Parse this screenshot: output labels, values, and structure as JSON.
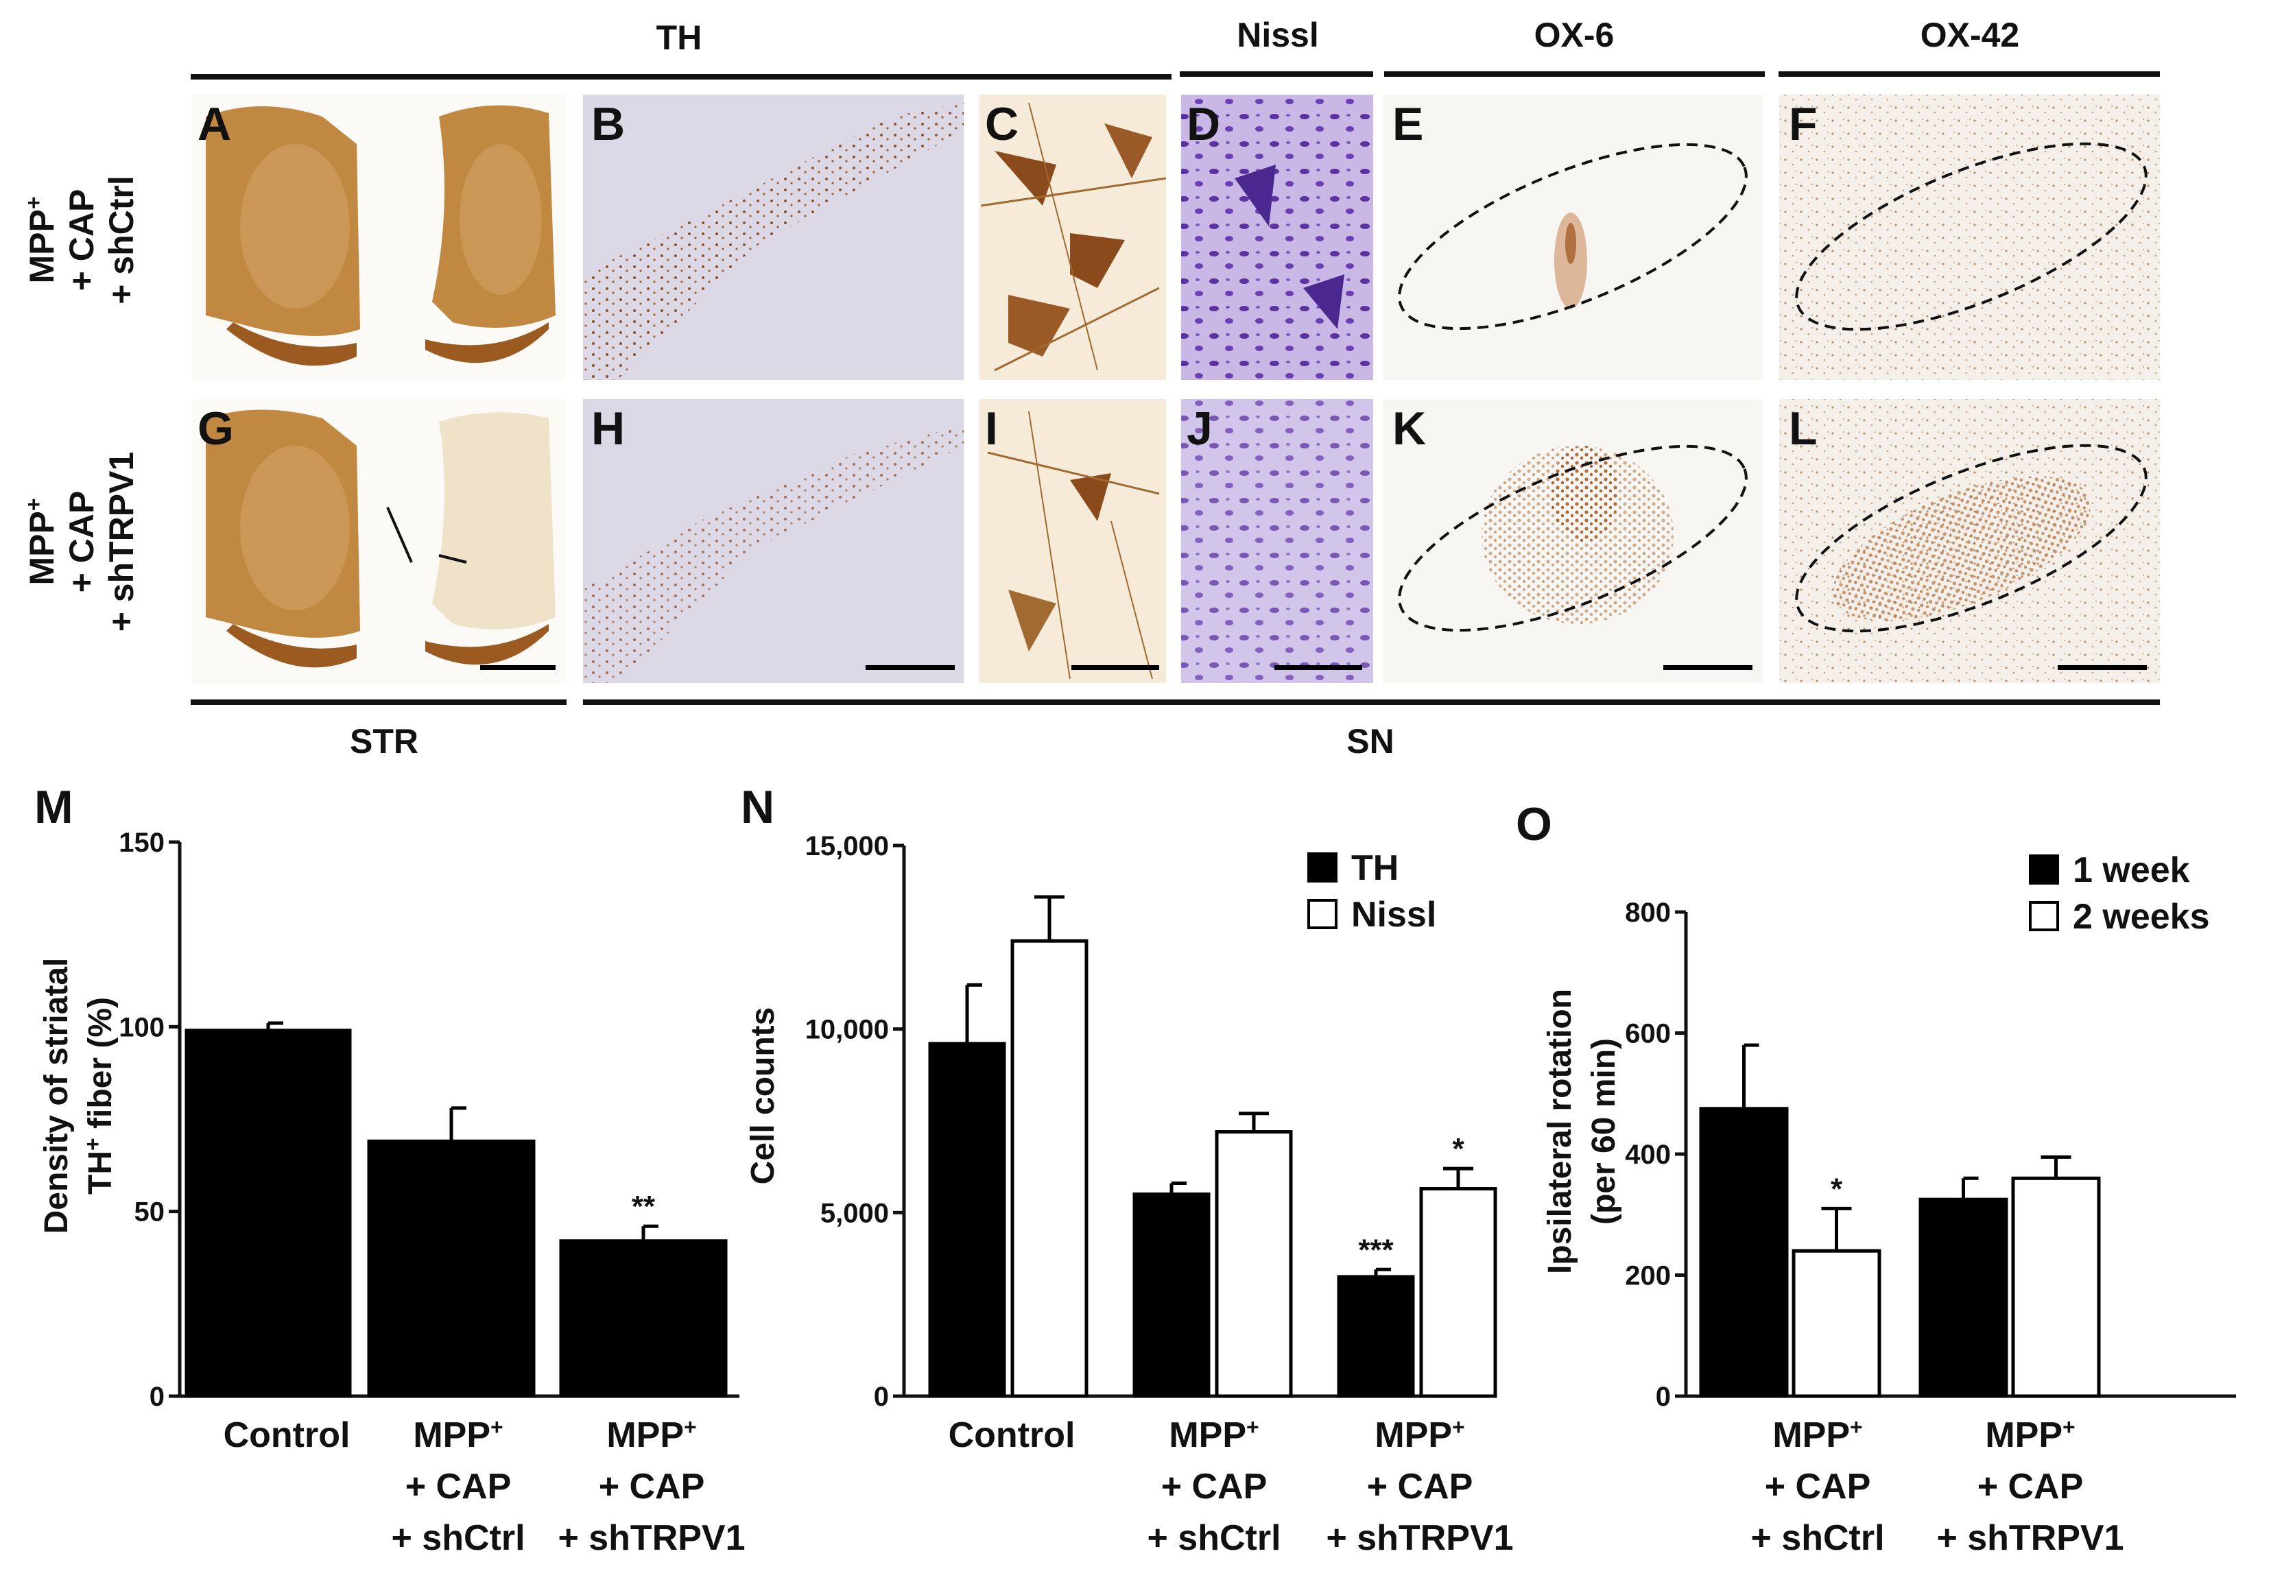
{
  "figure": {
    "column_headers": [
      "TH",
      "Nissl",
      "OX-6",
      "OX-42"
    ],
    "region_labels": [
      "STR",
      "SN"
    ],
    "rows": [
      {
        "line1": "MPP",
        "line1_sup": "+",
        "line2": "+ CAP",
        "line3": "+ shCtrl"
      },
      {
        "line1": "MPP",
        "line1_sup": "+",
        "line2": "+ CAP",
        "line3": "+ shTRPV1"
      }
    ],
    "panels": [
      {
        "letter": "A",
        "stain": "th_striatum"
      },
      {
        "letter": "B",
        "stain": "th_sn_high"
      },
      {
        "letter": "C",
        "stain": "th_cells_high"
      },
      {
        "letter": "D",
        "stain": "nissl_high"
      },
      {
        "letter": "E",
        "stain": "ox6_low"
      },
      {
        "letter": "F",
        "stain": "ox42_low"
      },
      {
        "letter": "G",
        "stain": "th_striatum_lesion"
      },
      {
        "letter": "H",
        "stain": "th_sn_low"
      },
      {
        "letter": "I",
        "stain": "th_cells_low"
      },
      {
        "letter": "J",
        "stain": "nissl_low"
      },
      {
        "letter": "K",
        "stain": "ox6_high"
      },
      {
        "letter": "L",
        "stain": "ox42_high"
      }
    ],
    "colors": {
      "th_brown": "#a8662a",
      "th_dark": "#7a3f12",
      "nissl_purple": "#6a3fa6",
      "nissl_bg": "#c9b8e6",
      "dab_dot": "#b07040",
      "tissue_bg": "#f7f4ee"
    }
  },
  "chart_data": [
    {
      "letter": "M",
      "type": "bar",
      "categories": [
        {
          "line1": "Control",
          "line1_sup": "",
          "line2": "",
          "line3": ""
        },
        {
          "line1": "MPP",
          "line1_sup": "+",
          "line2": "+ CAP",
          "line3": "+ shCtrl"
        },
        {
          "line1": "MPP",
          "line1_sup": "+",
          "line2": "+ CAP",
          "line3": "+ shTRPV1"
        }
      ],
      "series": [
        {
          "fill": "#000000",
          "values": [
            99,
            69,
            42
          ],
          "errors": [
            2,
            9,
            4
          ],
          "sig": [
            "",
            "",
            "**"
          ]
        }
      ],
      "ylabel_line1": "Density of striatal",
      "ylabel_line2": "TH",
      "ylabel_line2_sup": "+",
      "ylabel_line2_rest": " fiber (%)",
      "ylim": [
        0,
        150
      ],
      "yticks": [
        "0",
        "50",
        "100",
        "150"
      ],
      "legend": []
    },
    {
      "letter": "N",
      "type": "bar",
      "categories": [
        {
          "line1": "Control",
          "line1_sup": "",
          "line2": "",
          "line3": ""
        },
        {
          "line1": "MPP",
          "line1_sup": "+",
          "line2": "+ CAP",
          "line3": "+ shCtrl"
        },
        {
          "line1": "MPP",
          "line1_sup": "+",
          "line2": "+ CAP",
          "line3": "+ shTRPV1"
        }
      ],
      "series": [
        {
          "name": "TH",
          "fill": "#000000",
          "values": [
            9600,
            5500,
            3250
          ],
          "errors": [
            1600,
            300,
            200
          ],
          "sig": [
            "",
            "",
            "***"
          ]
        },
        {
          "name": "Nissl",
          "fill": "#ffffff",
          "values": [
            12400,
            7200,
            5650
          ],
          "errors": [
            1200,
            500,
            550
          ],
          "sig": [
            "",
            "",
            "*"
          ]
        }
      ],
      "ylabel_line1": "Cell counts",
      "ylim": [
        0,
        15000
      ],
      "yticks": [
        "0",
        "5,000",
        "10,000",
        "15,000"
      ],
      "legend": [
        "TH",
        "Nissl"
      ],
      "legend_placement": "top-right"
    },
    {
      "letter": "O",
      "type": "bar",
      "categories": [
        {
          "line1": "MPP",
          "line1_sup": "+",
          "line2": "+ CAP",
          "line3": "+ shCtrl"
        },
        {
          "line1": "MPP",
          "line1_sup": "+",
          "line2": "+ CAP",
          "line3": "+ shTRPV1"
        }
      ],
      "series": [
        {
          "name": "1 week",
          "fill": "#000000",
          "values": [
            475,
            325
          ],
          "errors": [
            105,
            35
          ],
          "sig": [
            "",
            ""
          ]
        },
        {
          "name": "2 weeks",
          "fill": "#ffffff",
          "values": [
            240,
            360
          ],
          "errors": [
            70,
            35
          ],
          "sig": [
            "*",
            ""
          ]
        }
      ],
      "ylabel_line1": "Ipsilateral rotation",
      "ylabel_line2": "(per 60 min)",
      "ylim": [
        0,
        800
      ],
      "yticks": [
        "0",
        "200",
        "400",
        "600",
        "800"
      ],
      "legend": [
        "1 week",
        "2 weeks"
      ],
      "legend_placement": "top-right"
    }
  ]
}
